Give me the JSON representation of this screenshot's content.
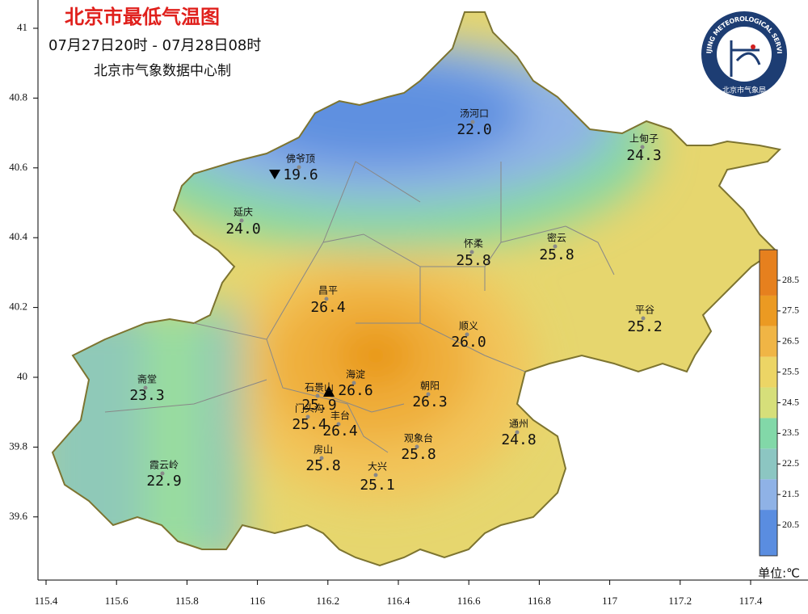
{
  "header": {
    "title": "北京市最低气温图",
    "time_range": "07月27日20时 - 07月28日08时",
    "source": "北京市气象数据中心制"
  },
  "logo": {
    "english": "BEIJING METEOROLOGICAL SERVICE",
    "chinese": "北京市气象局"
  },
  "stations": [
    {
      "name": "汤河口",
      "value": "22.0"
    },
    {
      "name": "上甸子",
      "value": "24.3"
    },
    {
      "name": "佛爷顶",
      "value": "19.6"
    },
    {
      "name": "延庆",
      "value": "24.0"
    },
    {
      "name": "怀柔",
      "value": "25.8"
    },
    {
      "name": "密云",
      "value": "25.8"
    },
    {
      "name": "昌平",
      "value": "26.4"
    },
    {
      "name": "平谷",
      "value": "25.2"
    },
    {
      "name": "顺义",
      "value": "26.0"
    },
    {
      "name": "斋堂",
      "value": "23.3"
    },
    {
      "name": "海淀",
      "value": "26.6"
    },
    {
      "name": "朝阳",
      "value": "26.3"
    },
    {
      "name": "石景山",
      "value": "25.9"
    },
    {
      "name": "门头沟",
      "value": "25.4"
    },
    {
      "name": "丰台",
      "value": "26.4"
    },
    {
      "name": "通州",
      "value": "24.8"
    },
    {
      "name": "观象台",
      "value": "25.8"
    },
    {
      "name": "房山",
      "value": "25.8"
    },
    {
      "name": "大兴",
      "value": "25.1"
    },
    {
      "name": "霞云岭",
      "value": "22.9"
    }
  ],
  "axes": {
    "lon_ticks": [
      115.4,
      115.6,
      115.8,
      116,
      116.2,
      116.4,
      116.6,
      116.8,
      117,
      117.2,
      117.4
    ],
    "lat_ticks": [
      39.6,
      39.8,
      40,
      40.2,
      40.4,
      40.6,
      40.8,
      41
    ]
  },
  "colorbar": {
    "ticks": [
      20.5,
      21.5,
      22.5,
      23.5,
      24.5,
      25.5,
      26.5,
      27.5,
      28.5
    ],
    "colors": [
      "#5a8de0",
      "#8fb2e6",
      "#8cc6c2",
      "#82d8a8",
      "#d6df7a",
      "#ecd565",
      "#f0b545",
      "#eb9a22",
      "#e6801e"
    ],
    "unit": "单位:℃"
  }
}
